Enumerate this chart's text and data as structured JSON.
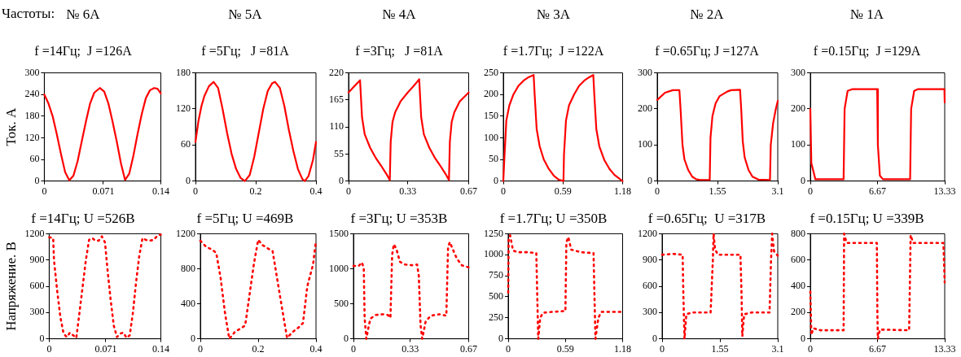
{
  "chart_data": [
    {
      "type": "line",
      "title": "№ 6A",
      "subtitle": "f =14Гц;  J =126A",
      "ylabel": "Ток. А",
      "annotations": [
        "Частоты:"
      ],
      "line_style": "solid",
      "xlim": [
        0,
        0.14
      ],
      "xticks": [
        0,
        0.071,
        0.14
      ],
      "ylim": [
        0,
        300
      ],
      "yticks": [
        0,
        60,
        120,
        180,
        240,
        300
      ],
      "x": [
        0,
        0.005,
        0.01,
        0.015,
        0.02,
        0.025,
        0.03,
        0.035,
        0.04,
        0.045,
        0.05,
        0.055,
        0.06,
        0.0667,
        0.072,
        0.077,
        0.082,
        0.087,
        0.092,
        0.097,
        0.102,
        0.107,
        0.112,
        0.117,
        0.122,
        0.127,
        0.132,
        0.136,
        0.14
      ],
      "series": [
        {
          "color": "#ff0000",
          "values": [
            240,
            215,
            180,
            130,
            75,
            25,
            2,
            15,
            55,
            110,
            165,
            215,
            245,
            258,
            248,
            215,
            165,
            110,
            50,
            3,
            20,
            70,
            130,
            185,
            230,
            252,
            258,
            256,
            243
          ]
        }
      ]
    },
    {
      "type": "line",
      "title": "№ 5A",
      "subtitle": "f =5Гц;   J =81A",
      "line_style": "solid",
      "xlim": [
        0,
        0.4
      ],
      "xticks": [
        0,
        0.2,
        0.4
      ],
      "ylim": [
        0,
        180
      ],
      "yticks": [
        0,
        60,
        120,
        180
      ],
      "x": [
        0,
        0.01,
        0.02,
        0.03,
        0.045,
        0.06,
        0.075,
        0.09,
        0.105,
        0.12,
        0.135,
        0.15,
        0.164,
        0.18,
        0.195,
        0.21,
        0.225,
        0.24,
        0.255,
        0.264,
        0.28,
        0.295,
        0.31,
        0.325,
        0.34,
        0.355,
        0.363,
        0.375,
        0.39,
        0.4
      ],
      "series": [
        {
          "color": "#ff0000",
          "values": [
            65,
            100,
            125,
            142,
            158,
            165,
            155,
            120,
            80,
            45,
            20,
            5,
            0,
            10,
            40,
            80,
            120,
            150,
            163,
            165,
            155,
            125,
            85,
            50,
            20,
            3,
            0,
            8,
            35,
            65
          ]
        }
      ]
    },
    {
      "type": "line",
      "title": "№ 4A",
      "subtitle": "f =3Гц;   J =81A",
      "line_style": "solid",
      "xlim": [
        0,
        0.67
      ],
      "xticks": [
        0,
        0.33,
        0.67
      ],
      "ylim": [
        0,
        220
      ],
      "yticks": [
        0,
        55,
        110,
        165,
        220
      ],
      "x": [
        0,
        0.03,
        0.064,
        0.075,
        0.09,
        0.12,
        0.15,
        0.18,
        0.21,
        0.23,
        0.235,
        0.245,
        0.26,
        0.29,
        0.33,
        0.36,
        0.394,
        0.405,
        0.42,
        0.45,
        0.48,
        0.51,
        0.54,
        0.56,
        0.565,
        0.575,
        0.59,
        0.62,
        0.67
      ],
      "series": [
        {
          "color": "#ff0000",
          "values": [
            180,
            192,
            205,
            130,
            95,
            68,
            48,
            32,
            15,
            2,
            80,
            120,
            140,
            162,
            180,
            192,
            207,
            130,
            95,
            68,
            48,
            32,
            15,
            2,
            80,
            120,
            140,
            162,
            180
          ]
        }
      ]
    },
    {
      "type": "line",
      "title": "№ 3A",
      "subtitle": "f =1.7Гц;  J =122A",
      "line_style": "solid",
      "xlim": [
        0,
        1.18
      ],
      "xticks": [
        0,
        0.59,
        1.18
      ],
      "ylim": [
        0,
        250
      ],
      "yticks": [
        0,
        50,
        100,
        150,
        200,
        250
      ],
      "x": [
        0,
        0.01,
        0.03,
        0.06,
        0.1,
        0.15,
        0.2,
        0.25,
        0.3,
        0.31,
        0.33,
        0.36,
        0.4,
        0.45,
        0.5,
        0.55,
        0.595,
        0.6,
        0.62,
        0.65,
        0.7,
        0.75,
        0.8,
        0.85,
        0.89,
        0.9,
        0.92,
        0.95,
        1,
        1.05,
        1.1,
        1.15,
        1.18
      ],
      "series": [
        {
          "color": "#ff0000",
          "values": [
            0,
            50,
            140,
            175,
            200,
            220,
            232,
            240,
            245,
            200,
            120,
            80,
            50,
            28,
            12,
            3,
            0,
            60,
            140,
            175,
            200,
            220,
            232,
            240,
            245,
            200,
            120,
            80,
            48,
            28,
            14,
            5,
            0
          ]
        }
      ]
    },
    {
      "type": "line",
      "title": "№ 2A",
      "subtitle": "f =0.65Гц; J =127A",
      "line_style": "solid",
      "xlim": [
        0,
        3.1
      ],
      "xticks": [
        0,
        1.55,
        3.1
      ],
      "ylim": [
        0,
        300
      ],
      "yticks": [
        0,
        100,
        200,
        300
      ],
      "x": [
        0,
        0.2,
        0.4,
        0.57,
        0.6,
        0.65,
        0.7,
        0.8,
        0.9,
        1,
        1.1,
        1.35,
        1.37,
        1.42,
        1.5,
        1.6,
        1.8,
        1.9,
        2.13,
        2.16,
        2.2,
        2.25,
        2.35,
        2.45,
        2.6,
        2.9,
        2.92,
        2.98,
        3.05,
        3.1
      ],
      "series": [
        {
          "color": "#ff0000",
          "values": [
            225,
            245,
            252,
            252,
            200,
            100,
            60,
            30,
            12,
            5,
            3,
            3,
            120,
            180,
            215,
            235,
            248,
            252,
            253,
            200,
            110,
            65,
            30,
            12,
            4,
            3,
            100,
            160,
            200,
            222
          ]
        }
      ]
    },
    {
      "type": "line",
      "title": "№ 1A",
      "subtitle": "f =0.15Гц;  J =129A",
      "line_style": "solid",
      "xlim": [
        0,
        13.33
      ],
      "xticks": [
        0,
        6.67,
        13.33
      ],
      "ylim": [
        0,
        300
      ],
      "yticks": [
        0,
        100,
        200,
        300
      ],
      "x": [
        0,
        0.1,
        0.5,
        3.3,
        3.4,
        3.7,
        4.2,
        6.63,
        6.7,
        6.9,
        7.2,
        9.9,
        10,
        10.3,
        10.7,
        13.3,
        13.33
      ],
      "series": [
        {
          "color": "#ff0000",
          "values": [
            200,
            50,
            5,
            5,
            200,
            250,
            255,
            255,
            100,
            15,
            5,
            5,
            200,
            250,
            255,
            255,
            218
          ]
        }
      ]
    },
    {
      "type": "line",
      "title": "f =14Гц; U =526В",
      "ylabel": "Напряжение. В",
      "line_style": "dotted",
      "xlim": [
        0,
        0.14
      ],
      "xticks": [
        0,
        0.071,
        0.14
      ],
      "ylim": [
        0,
        1200
      ],
      "yticks": [
        0,
        300,
        600,
        900,
        1200
      ],
      "x": [
        0,
        0.005,
        0.006,
        0.01,
        0.014,
        0.018,
        0.022,
        0.026,
        0.03,
        0.034,
        0.038,
        0.042,
        0.046,
        0.05,
        0.054,
        0.058,
        0.062,
        0.066,
        0.07,
        0.073,
        0.077,
        0.081,
        0.085,
        0.089,
        0.093,
        0.097,
        0.101,
        0.105,
        0.109,
        0.113,
        0.117,
        0.121,
        0.126,
        0.131,
        0.136,
        0.14
      ],
      "series": [
        {
          "color": "#ff0000",
          "values": [
            1160,
            1150,
            900,
            550,
            250,
            60,
            20,
            70,
            40,
            10,
            300,
            600,
            900,
            1130,
            1150,
            1120,
            1120,
            1170,
            1100,
            800,
            450,
            150,
            20,
            60,
            70,
            10,
            40,
            300,
            650,
            950,
            1150,
            1130,
            1120,
            1130,
            1180,
            1190
          ]
        }
      ]
    },
    {
      "type": "line",
      "title": "f =5Гц; U =469В",
      "line_style": "dotted",
      "xlim": [
        0,
        0.4
      ],
      "xticks": [
        0,
        0.2,
        0.4
      ],
      "ylim": [
        0,
        1200
      ],
      "yticks": [
        0,
        400,
        800,
        1200
      ],
      "x": [
        0,
        0.02,
        0.04,
        0.055,
        0.07,
        0.085,
        0.1,
        0.12,
        0.14,
        0.155,
        0.17,
        0.185,
        0.2,
        0.215,
        0.23,
        0.25,
        0.27,
        0.285,
        0.3,
        0.32,
        0.34,
        0.355,
        0.37,
        0.39,
        0.4
      ],
      "series": [
        {
          "color": "#ff0000",
          "values": [
            1120,
            1050,
            1020,
            980,
            700,
            300,
            0,
            80,
            120,
            150,
            500,
            850,
            1130,
            1070,
            1040,
            1000,
            600,
            300,
            10,
            80,
            130,
            180,
            600,
            850,
            1120
          ]
        }
      ]
    },
    {
      "type": "line",
      "title": "f =3Гц; U =353В",
      "line_style": "dotted",
      "xlim": [
        0,
        0.67
      ],
      "xticks": [
        0,
        0.33,
        0.67
      ],
      "ylim": [
        0,
        1500
      ],
      "yticks": [
        0,
        500,
        1000,
        1500
      ],
      "x": [
        0,
        0.03,
        0.05,
        0.06,
        0.065,
        0.075,
        0.09,
        0.1,
        0.13,
        0.17,
        0.2,
        0.215,
        0.225,
        0.235,
        0.25,
        0.27,
        0.3,
        0.34,
        0.37,
        0.38,
        0.39,
        0.4,
        0.42,
        0.45,
        0.5,
        0.54,
        0.55,
        0.56,
        0.6,
        0.63,
        0.67
      ],
      "series": [
        {
          "color": "#ff0000",
          "values": [
            1040,
            1040,
            1090,
            1000,
            300,
            0,
            200,
            290,
            340,
            350,
            340,
            300,
            1200,
            1350,
            1280,
            1100,
            1060,
            1050,
            1060,
            900,
            200,
            0,
            250,
            330,
            350,
            330,
            1300,
            1380,
            1150,
            1050,
            1020
          ]
        }
      ]
    },
    {
      "type": "line",
      "title": "f =1.7Гц; U =350В",
      "line_style": "dotted",
      "xlim": [
        0,
        1.18
      ],
      "xticks": [
        0,
        0.59,
        1.18
      ],
      "ylim": [
        0,
        1250
      ],
      "yticks": [
        0,
        250,
        500,
        750,
        1000,
        1250
      ],
      "x": [
        0,
        0.005,
        0.02,
        0.05,
        0.1,
        0.2,
        0.29,
        0.3,
        0.31,
        0.33,
        0.36,
        0.45,
        0.59,
        0.6,
        0.62,
        0.65,
        0.75,
        0.88,
        0.89,
        0.9,
        0.93,
        0.96,
        1.1,
        1.18
      ],
      "series": [
        {
          "color": "#ff0000",
          "values": [
            550,
            1200,
            1230,
            1050,
            1030,
            1030,
            1020,
            500,
            0,
            250,
            310,
            320,
            330,
            1150,
            1210,
            1060,
            1030,
            1020,
            500,
            0,
            250,
            320,
            320,
            320
          ]
        }
      ]
    },
    {
      "type": "line",
      "title": "f =0.65Гц;  U =317В",
      "line_style": "dotted",
      "xlim": [
        0,
        3.1
      ],
      "xticks": [
        0,
        1.55,
        3.1
      ],
      "ylim": [
        0,
        1200
      ],
      "yticks": [
        0,
        300,
        600,
        900,
        1200
      ],
      "x": [
        0,
        0.3,
        0.55,
        0.57,
        0.6,
        0.65,
        0.8,
        1.3,
        1.36,
        1.38,
        1.42,
        1.5,
        2.1,
        2.13,
        2.15,
        2.2,
        2.4,
        2.88,
        2.92,
        2.95,
        3,
        3.1
      ],
      "series": [
        {
          "color": "#ff0000",
          "values": [
            960,
            970,
            960,
            500,
            0,
            280,
            300,
            300,
            900,
            1200,
            1020,
            960,
            960,
            500,
            30,
            280,
            300,
            300,
            900,
            1200,
            1000,
            950
          ]
        }
      ]
    },
    {
      "type": "line",
      "title": "f =0.15Гц; U =339В",
      "line_style": "dotted",
      "xlim": [
        0,
        13.33
      ],
      "xticks": [
        0,
        6.67,
        13.33
      ],
      "ylim": [
        0,
        800
      ],
      "yticks": [
        0,
        200,
        400,
        600,
        800
      ],
      "x": [
        0,
        0.1,
        0.3,
        1,
        3.3,
        3.35,
        3.6,
        6.6,
        6.65,
        6.7,
        6.9,
        9.8,
        9.95,
        10.2,
        13.2,
        13.33
      ],
      "series": [
        {
          "color": "#ff0000",
          "values": [
            360,
            30,
            80,
            65,
            65,
            800,
            730,
            730,
            200,
            0,
            70,
            65,
            790,
            730,
            730,
            430
          ]
        }
      ]
    }
  ]
}
